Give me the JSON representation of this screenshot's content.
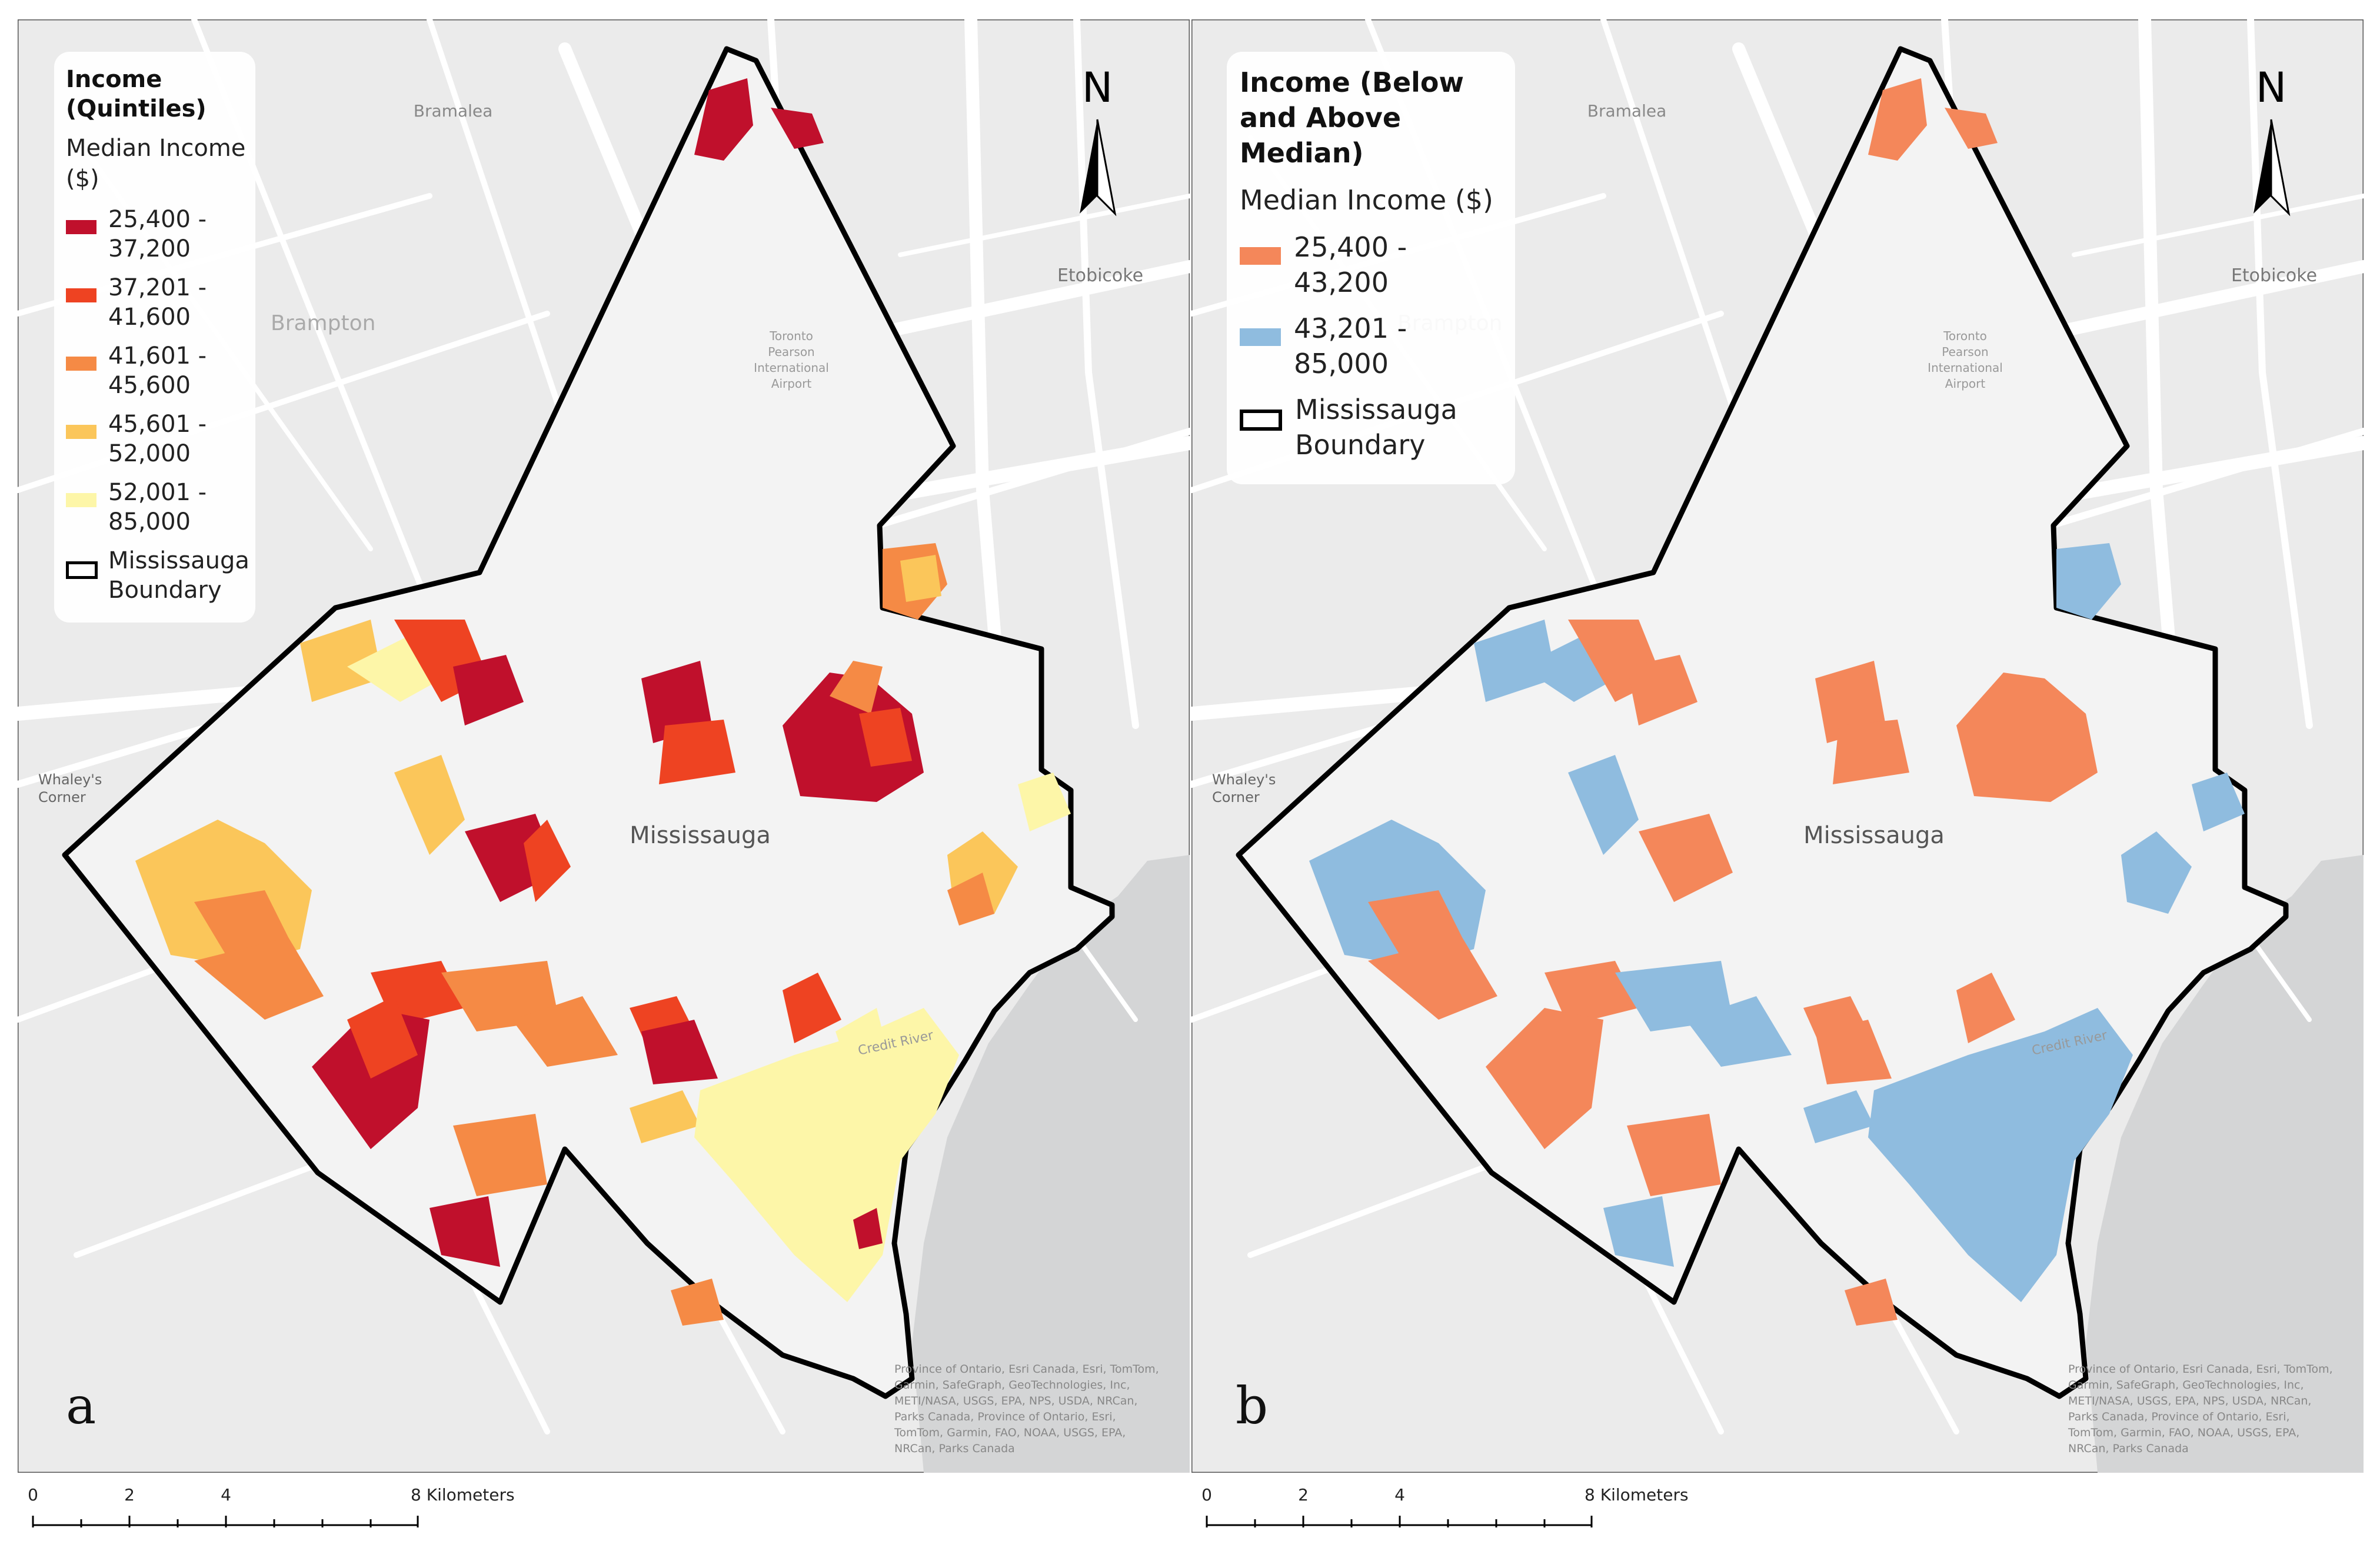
{
  "panels": [
    {
      "id": "a",
      "letter": "a",
      "legend": {
        "title": "Income\n(Quintiles)",
        "subtitle": "Median Income\n($)",
        "classes": [
          {
            "label": "25,400 -\n37,200",
            "color": "#c0102c"
          },
          {
            "label": "37,201 -\n41,600",
            "color": "#ee4322"
          },
          {
            "label": "41,601 -\n45,600",
            "color": "#f58a45"
          },
          {
            "label": "45,601 -\n52,000",
            "color": "#fbc65a"
          },
          {
            "label": "52,001 -\n85,000",
            "color": "#fdf6a8"
          }
        ],
        "boundary_label": "Mississauga\nBoundary"
      }
    },
    {
      "id": "b",
      "letter": "b",
      "legend": {
        "title": "Income (Below\nand Above\nMedian)",
        "subtitle": "Median Income ($)",
        "classes": [
          {
            "label": "25,400 -\n43,200",
            "color": "#f4875a"
          },
          {
            "label": "43,201 -\n85,000",
            "color": "#8fbcdf"
          }
        ],
        "boundary_label": "Mississauga\nBoundary"
      }
    }
  ],
  "map_labels": {
    "bramalea": "Bramalea",
    "brampton": "Brampton",
    "etobicoke": "Etobicoke",
    "mississauga": "Mississauga",
    "whaleys_corner": "Whaley's\nCorner",
    "airport": "Toronto\nPearson\nInternational\nAirport",
    "credit_river": "Credit River"
  },
  "north_arrow": "N",
  "attribution": "Province of Ontario, Esri Canada, Esri, TomTom,\nGarmin, SafeGraph, GeoTechnologies, Inc,\nMETI/NASA, USGS, EPA, NPS, USDA, NRCan,\nParks Canada, Province of Ontario, Esri,\nTomTom, Garmin, FAO, NOAA, USGS, EPA,\nNRCan, Parks Canada",
  "scale_bar": {
    "ticks": [
      "0",
      "2",
      "4",
      "8 Kilometers"
    ]
  },
  "colors": {
    "boundary": "#000000",
    "basemap": "#eaeaea",
    "lake": "#d5d6d7",
    "roads": "#ffffff"
  }
}
